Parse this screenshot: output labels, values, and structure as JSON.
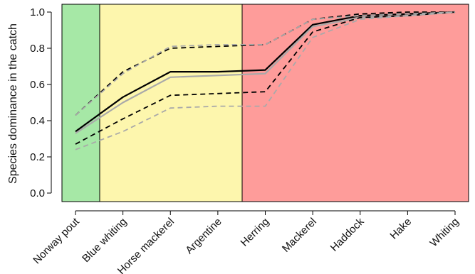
{
  "chart_data": {
    "type": "line",
    "title": "",
    "xlabel": "",
    "ylabel": "Species dominance in the catch",
    "categories": [
      "Norway pout",
      "Blue whiting",
      "Horse mackerel",
      "Argentine",
      "Herring",
      "Mackerel",
      "Haddock",
      "Hake",
      "Whiting"
    ],
    "ylim": [
      0,
      1
    ],
    "yticks": [
      "0.0",
      "0.2",
      "0.4",
      "0.6",
      "0.8",
      "1.0"
    ],
    "grid": false,
    "regions": [
      {
        "from_category": "Norway pout",
        "to_category": "Blue whiting",
        "color": "#a6e8a6"
      },
      {
        "from_category": "Blue whiting",
        "to_category": "Herring",
        "color": "#fdf6ad"
      },
      {
        "from_category": "Herring",
        "to_category": "Whiting",
        "color": "#fe9c9a"
      }
    ],
    "series": [
      {
        "style": "solid",
        "color": "#000000",
        "values": [
          0.34,
          0.53,
          0.67,
          0.67,
          0.68,
          0.93,
          0.98,
          0.99,
          1.0
        ]
      },
      {
        "style": "solid",
        "color": "#a9a9a9",
        "values": [
          0.33,
          0.5,
          0.64,
          0.65,
          0.66,
          0.92,
          0.97,
          0.98,
          1.0
        ]
      },
      {
        "style": "dashed",
        "color": "#000000",
        "values": [
          0.43,
          0.67,
          0.8,
          0.81,
          0.82,
          0.96,
          0.99,
          1.0,
          1.0
        ]
      },
      {
        "style": "dashed",
        "color": "#000000",
        "values": [
          0.27,
          0.41,
          0.54,
          0.55,
          0.56,
          0.89,
          0.97,
          0.98,
          1.0
        ]
      },
      {
        "style": "dashed",
        "color": "#a9a9a9",
        "values": [
          0.43,
          0.66,
          0.81,
          0.82,
          0.82,
          0.96,
          0.98,
          0.99,
          1.0
        ]
      },
      {
        "style": "dashed",
        "color": "#a9a9a9",
        "values": [
          0.24,
          0.34,
          0.47,
          0.48,
          0.48,
          0.86,
          0.96,
          0.98,
          1.0
        ]
      }
    ]
  }
}
